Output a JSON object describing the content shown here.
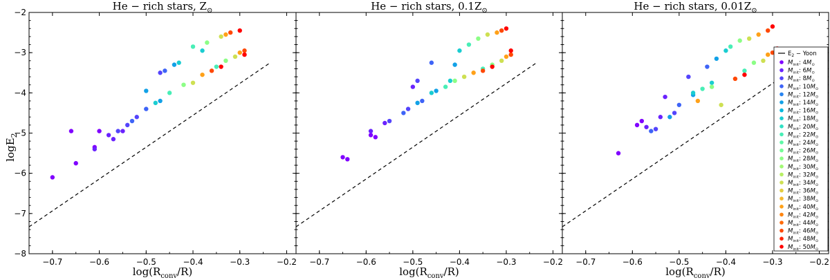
{
  "figure": {
    "ylabel": "logE",
    "ylabel_sub": "2",
    "xlabel_main": "log(R",
    "xlabel_sub": "conv",
    "xlabel_tail": "/R)"
  },
  "legend": {
    "line_label": "E",
    "line_label_sub": "2",
    "line_label_tail": " − Yoon",
    "mass_prefix": "M",
    "mass_prefix_sub": "init",
    "mass_suffix": "M",
    "mass_suffix_sub": "⊙",
    "entries": [
      {
        "label": ": 4",
        "mass": 4,
        "color": "#8000ff"
      },
      {
        "label": ": 6",
        "mass": 6,
        "color": "#6a22fe"
      },
      {
        "label": ": 8",
        "mass": 8,
        "color": "#5444fc"
      },
      {
        "label": ": 10",
        "mass": 10,
        "color": "#3e64f7"
      },
      {
        "label": ": 12",
        "mass": 12,
        "color": "#2884f0"
      },
      {
        "label": ": 14",
        "mass": 14,
        "color": "#12a1e7"
      },
      {
        "label": ": 16",
        "mass": 16,
        "color": "#04b9de"
      },
      {
        "label": ": 18",
        "mass": 18,
        "color": "#1acdd1"
      },
      {
        "label": ": 20",
        "mass": 20,
        "color": "#30e0c4"
      },
      {
        "label": ": 22",
        "mass": 22,
        "color": "#48eeb6"
      },
      {
        "label": ": 24",
        "mass": 24,
        "color": "#5ef8a7"
      },
      {
        "label": ": 26",
        "mass": 26,
        "color": "#74fe97"
      },
      {
        "label": ": 28",
        "mass": 28,
        "color": "#8cfe86"
      },
      {
        "label": ": 30",
        "mass": 30,
        "color": "#a2f975"
      },
      {
        "label": ": 32",
        "mass": 32,
        "color": "#b8ef64"
      },
      {
        "label": ": 34",
        "mass": 34,
        "color": "#cee052"
      },
      {
        "label": ": 36",
        "mass": 36,
        "color": "#e4cd3f"
      },
      {
        "label": ": 38",
        "mass": 38,
        "color": "#f6b82c"
      },
      {
        "label": ": 40",
        "mass": 40,
        "color": "#ffa119"
      },
      {
        "label": ": 42",
        "mass": 42,
        "color": "#ff8510"
      },
      {
        "label": ": 44",
        "mass": 44,
        "color": "#ff6a08"
      },
      {
        "label": ": 46",
        "mass": 46,
        "color": "#ff4804"
      },
      {
        "label": ": 48",
        "mass": 48,
        "color": "#ff2402"
      },
      {
        "label": ": 50",
        "mass": 50,
        "color": "#ff0000"
      }
    ]
  },
  "chart_data": [
    {
      "type": "scatter",
      "title": "He − rich stars, Z",
      "title_sub": "⊙",
      "xlim": [
        -0.75,
        -0.18
      ],
      "ylim": [
        -8,
        -2
      ],
      "xticks": [
        "−0.7",
        "−0.6",
        "−0.5",
        "−0.4",
        "−0.3",
        "−0.2"
      ],
      "xtick_values": [
        -0.7,
        -0.6,
        -0.5,
        -0.4,
        -0.3,
        -0.2
      ],
      "yticks": [
        "−8",
        "−7",
        "−6",
        "−5",
        "−4",
        "−3",
        "−2"
      ],
      "ytick_values": [
        -8,
        -7,
        -6,
        -5,
        -4,
        -3,
        -2
      ],
      "line": {
        "name": "E2 − Yoon",
        "x": [
          -0.75,
          -0.235
        ],
        "y": [
          -7.33,
          -3.25
        ]
      },
      "series": [
        {
          "mass": 4,
          "points": [
            [
              -0.7,
              -6.1
            ],
            [
              -0.66,
              -4.95
            ],
            [
              -0.65,
              -5.75
            ],
            [
              -0.61,
              -5.35
            ],
            [
              -0.6,
              -4.95
            ]
          ]
        },
        {
          "mass": 6,
          "points": [
            [
              -0.61,
              -5.4
            ],
            [
              -0.58,
              -5.05
            ],
            [
              -0.57,
              -5.15
            ],
            [
              -0.55,
              -4.95
            ]
          ]
        },
        {
          "mass": 8,
          "points": [
            [
              -0.56,
              -4.95
            ],
            [
              -0.54,
              -4.8
            ],
            [
              -0.52,
              -4.6
            ],
            [
              -0.47,
              -3.5
            ]
          ]
        },
        {
          "mass": 10,
          "points": [
            [
              -0.53,
              -4.7
            ],
            [
              -0.5,
              -4.4
            ],
            [
              -0.46,
              -3.45
            ]
          ]
        },
        {
          "mass": 14,
          "points": [
            [
              -0.5,
              -3.95
            ],
            [
              -0.47,
              -4.2
            ],
            [
              -0.44,
              -3.3
            ]
          ]
        },
        {
          "mass": 18,
          "points": [
            [
              -0.48,
              -4.25
            ],
            [
              -0.43,
              -3.25
            ],
            [
              -0.38,
              -2.95
            ]
          ]
        },
        {
          "mass": 22,
          "points": [
            [
              -0.45,
              -4.0
            ],
            [
              -0.4,
              -2.85
            ],
            [
              -0.35,
              -3.35
            ]
          ]
        },
        {
          "mass": 28,
          "points": [
            [
              -0.42,
              -3.8
            ],
            [
              -0.37,
              -2.75
            ],
            [
              -0.33,
              -3.2
            ]
          ]
        },
        {
          "mass": 34,
          "points": [
            [
              -0.4,
              -3.75
            ],
            [
              -0.34,
              -2.6
            ],
            [
              -0.31,
              -3.1
            ]
          ]
        },
        {
          "mass": 40,
          "points": [
            [
              -0.38,
              -3.55
            ],
            [
              -0.33,
              -2.55
            ],
            [
              -0.3,
              -3.0
            ]
          ]
        },
        {
          "mass": 46,
          "points": [
            [
              -0.36,
              -3.45
            ],
            [
              -0.32,
              -2.5
            ],
            [
              -0.29,
              -2.95
            ]
          ]
        },
        {
          "mass": 50,
          "points": [
            [
              -0.34,
              -3.35
            ],
            [
              -0.3,
              -2.45
            ],
            [
              -0.29,
              -3.05
            ]
          ]
        }
      ]
    },
    {
      "type": "scatter",
      "title": "He − rich stars, 0.1Z",
      "title_sub": "⊙",
      "xlim": [
        -0.75,
        -0.18
      ],
      "ylim": [
        -8,
        -2
      ],
      "xticks": [
        "−0.7",
        "−0.6",
        "−0.5",
        "−0.4",
        "−0.3",
        "−0.2"
      ],
      "xtick_values": [
        -0.7,
        -0.6,
        -0.5,
        -0.4,
        -0.3,
        -0.2
      ],
      "yticks": [
        "−8",
        "−7",
        "−6",
        "−5",
        "−4",
        "−3",
        "−2"
      ],
      "ytick_values": [
        -8,
        -7,
        -6,
        -5,
        -4,
        -3,
        -2
      ],
      "line": {
        "name": "E2 − Yoon",
        "x": [
          -0.75,
          -0.235
        ],
        "y": [
          -7.33,
          -3.25
        ]
      },
      "series": [
        {
          "mass": 4,
          "points": [
            [
              -0.65,
              -5.6
            ],
            [
              -0.64,
              -5.65
            ],
            [
              -0.59,
              -5.05
            ],
            [
              -0.58,
              -5.1
            ]
          ]
        },
        {
          "mass": 6,
          "points": [
            [
              -0.59,
              -4.95
            ],
            [
              -0.56,
              -4.75
            ],
            [
              -0.5,
              -3.85
            ]
          ]
        },
        {
          "mass": 8,
          "points": [
            [
              -0.55,
              -4.7
            ],
            [
              -0.51,
              -4.4
            ],
            [
              -0.49,
              -3.7
            ]
          ]
        },
        {
          "mass": 10,
          "points": [
            [
              -0.52,
              -4.5
            ],
            [
              -0.48,
              -4.2
            ],
            [
              -0.46,
              -3.25
            ]
          ]
        },
        {
          "mass": 14,
          "points": [
            [
              -0.49,
              -4.25
            ],
            [
              -0.45,
              -3.95
            ],
            [
              -0.41,
              -3.3
            ]
          ]
        },
        {
          "mass": 18,
          "points": [
            [
              -0.46,
              -4.0
            ],
            [
              -0.42,
              -3.7
            ],
            [
              -0.4,
              -2.95
            ]
          ]
        },
        {
          "mass": 22,
          "points": [
            [
              -0.43,
              -3.85
            ],
            [
              -0.38,
              -2.8
            ],
            [
              -0.35,
              -3.4
            ]
          ]
        },
        {
          "mass": 28,
          "points": [
            [
              -0.41,
              -3.7
            ],
            [
              -0.36,
              -2.65
            ],
            [
              -0.33,
              -3.3
            ]
          ]
        },
        {
          "mass": 34,
          "points": [
            [
              -0.39,
              -3.6
            ],
            [
              -0.34,
              -2.55
            ],
            [
              -0.31,
              -3.2
            ]
          ]
        },
        {
          "mass": 40,
          "points": [
            [
              -0.37,
              -3.5
            ],
            [
              -0.32,
              -2.5
            ],
            [
              -0.3,
              -3.1
            ]
          ]
        },
        {
          "mass": 46,
          "points": [
            [
              -0.35,
              -3.45
            ],
            [
              -0.31,
              -2.45
            ],
            [
              -0.29,
              -3.05
            ]
          ]
        },
        {
          "mass": 50,
          "points": [
            [
              -0.33,
              -3.35
            ],
            [
              -0.3,
              -2.4
            ],
            [
              -0.29,
              -2.95
            ]
          ]
        }
      ]
    },
    {
      "type": "scatter",
      "title": "He − rich stars, 0.01Z",
      "title_sub": "⊙",
      "xlim": [
        -0.75,
        -0.18
      ],
      "ylim": [
        -8,
        -2
      ],
      "xticks": [
        "−0.7",
        "−0.6",
        "−0.5",
        "−0.4",
        "−0.3",
        "−0.2"
      ],
      "xtick_values": [
        -0.7,
        -0.6,
        -0.5,
        -0.4,
        -0.3,
        -0.2
      ],
      "yticks": [
        "−8",
        "−7",
        "−6",
        "−5",
        "−4",
        "−3",
        "−2"
      ],
      "ytick_values": [
        -8,
        -7,
        -6,
        -5,
        -4,
        -3,
        -2
      ],
      "line": {
        "name": "E2 − Yoon",
        "x": [
          -0.75,
          -0.235
        ],
        "y": [
          -7.33,
          -3.25
        ]
      },
      "series": [
        {
          "mass": 4,
          "points": [
            [
              -0.63,
              -5.5
            ],
            [
              -0.59,
              -4.8
            ],
            [
              -0.58,
              -4.7
            ]
          ]
        },
        {
          "mass": 6,
          "points": [
            [
              -0.57,
              -4.85
            ],
            [
              -0.54,
              -4.6
            ],
            [
              -0.53,
              -4.1
            ]
          ]
        },
        {
          "mass": 8,
          "points": [
            [
              -0.55,
              -4.9
            ],
            [
              -0.51,
              -4.5
            ],
            [
              -0.48,
              -3.6
            ]
          ]
        },
        {
          "mass": 10,
          "points": [
            [
              -0.56,
              -4.95
            ],
            [
              -0.5,
              -4.3
            ],
            [
              -0.44,
              -3.35
            ]
          ]
        },
        {
          "mass": 14,
          "points": [
            [
              -0.52,
              -4.6
            ],
            [
              -0.47,
              -4.05
            ],
            [
              -0.42,
              -3.15
            ]
          ]
        },
        {
          "mass": 18,
          "points": [
            [
              -0.47,
              -4.0
            ],
            [
              -0.43,
              -3.75
            ],
            [
              -0.4,
              -2.95
            ]
          ]
        },
        {
          "mass": 22,
          "points": [
            [
              -0.45,
              -3.9
            ],
            [
              -0.39,
              -2.85
            ],
            [
              -0.36,
              -3.45
            ]
          ]
        },
        {
          "mass": 28,
          "points": [
            [
              -0.43,
              -3.85
            ],
            [
              -0.37,
              -2.7
            ],
            [
              -0.34,
              -3.25
            ]
          ]
        },
        {
          "mass": 34,
          "points": [
            [
              -0.41,
              -4.3
            ],
            [
              -0.35,
              -2.65
            ],
            [
              -0.32,
              -3.2
            ]
          ]
        },
        {
          "mass": 40,
          "points": [
            [
              -0.46,
              -4.2
            ],
            [
              -0.33,
              -2.55
            ],
            [
              -0.31,
              -3.05
            ]
          ]
        },
        {
          "mass": 46,
          "points": [
            [
              -0.38,
              -3.65
            ],
            [
              -0.31,
              -2.45
            ],
            [
              -0.3,
              -3.0
            ]
          ]
        },
        {
          "mass": 50,
          "points": [
            [
              -0.36,
              -3.55
            ],
            [
              -0.3,
              -2.35
            ],
            [
              -0.29,
              -2.9
            ]
          ]
        }
      ]
    }
  ]
}
